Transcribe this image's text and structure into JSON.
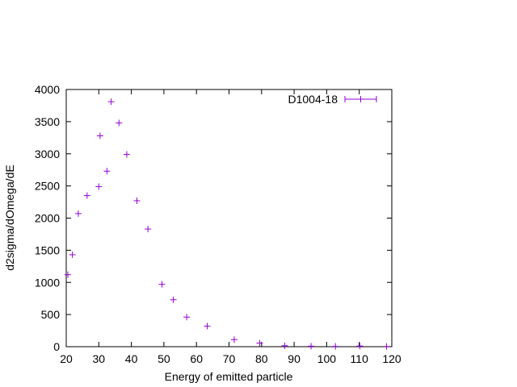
{
  "chart_data": {
    "type": "scatter",
    "title": "",
    "xlabel": "Energy of emitted particle",
    "ylabel": "d2sigma/dOmega/dE",
    "xlim": [
      20,
      120
    ],
    "ylim": [
      0,
      4000
    ],
    "x_ticks": [
      20,
      30,
      40,
      50,
      60,
      70,
      80,
      90,
      100,
      110,
      120
    ],
    "y_ticks": [
      0,
      500,
      1000,
      1500,
      2000,
      2500,
      3000,
      3500,
      4000
    ],
    "x_tick_labels": [
      "20",
      "30",
      "40",
      "50",
      "60",
      "70",
      "80",
      "90",
      "100",
      "110",
      "120"
    ],
    "y_tick_labels": [
      "0",
      "500",
      "1000",
      "1500",
      "2000",
      "2500",
      "3000",
      "3500",
      "4000"
    ],
    "grid": false,
    "legend_position": "top-right",
    "series": [
      {
        "name": "D1004-18",
        "color": "#9400d3",
        "marker": "plus-with-errorbars",
        "x": [
          20.5,
          21.9,
          23.7,
          26.4,
          30.0,
          30.4,
          32.5,
          33.8,
          36.2,
          38.6,
          41.7,
          45.1,
          49.4,
          52.9,
          57.0,
          63.3,
          71.6,
          79.4,
          87.1,
          95.2,
          102.7,
          110.2,
          118.4
        ],
        "y": [
          1120,
          1430,
          2070,
          2350,
          2490,
          3280,
          2730,
          3810,
          3480,
          2990,
          2270,
          1830,
          970,
          730,
          460,
          320,
          110,
          55,
          15,
          8,
          5,
          10,
          3
        ]
      }
    ]
  }
}
